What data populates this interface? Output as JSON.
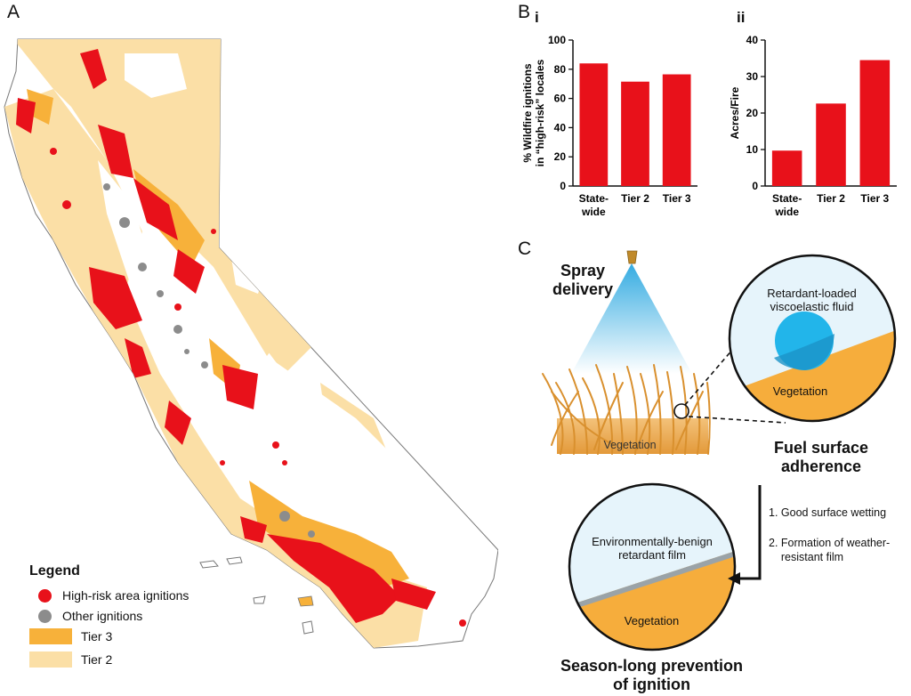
{
  "panels": {
    "a": "A",
    "b": "B",
    "c": "C"
  },
  "legend": {
    "title": "Legend",
    "items": [
      {
        "label": "High-risk area ignitions",
        "color": "#e8111a",
        "shape": "dot"
      },
      {
        "label": "Other ignitions",
        "color": "#8c8c8c",
        "shape": "dot"
      },
      {
        "label": "Tier 3",
        "color": "#f7b13a",
        "shape": "swatch"
      },
      {
        "label": "Tier 2",
        "color": "#fbdfa6",
        "shape": "swatch"
      }
    ]
  },
  "chart_data": [
    {
      "type": "bar",
      "subpanel": "i",
      "categories": [
        "State-\nwide",
        "Tier 2",
        "Tier 3"
      ],
      "values": [
        84,
        71.5,
        76.5
      ],
      "ylabel": "% Wildfire ignitions\nin “high-risk” locales",
      "yticks": [
        0,
        20,
        40,
        60,
        80,
        100
      ],
      "ylim": [
        0,
        100
      ],
      "color": "#e8111a"
    },
    {
      "type": "bar",
      "subpanel": "ii",
      "categories": [
        "State-\nwide",
        "Tier 2",
        "Tier 3"
      ],
      "values": [
        9.7,
        22.6,
        34.5
      ],
      "ylabel": "Acres/Fire",
      "yticks": [
        0,
        10,
        20,
        30,
        40
      ],
      "ylim": [
        0,
        40
      ],
      "color": "#e8111a"
    }
  ],
  "diagram": {
    "spray_title": "Spray\ndelivery",
    "vegetation_label": "Vegetation",
    "zoom_fluid_label": "Retardant-loaded\nviscoelastic fluid",
    "zoom_vegetation_label": "Vegetation",
    "adherence_title": "Fuel surface\nadherence",
    "steps": [
      "1. Good surface wetting",
      "2. Formation of weather-\n    resistant film"
    ],
    "film_label": "Environmentally-benign\nretardant film",
    "film_vegetation_label": "Vegetation",
    "prevention_title": "Season-long prevention\nof ignition"
  }
}
